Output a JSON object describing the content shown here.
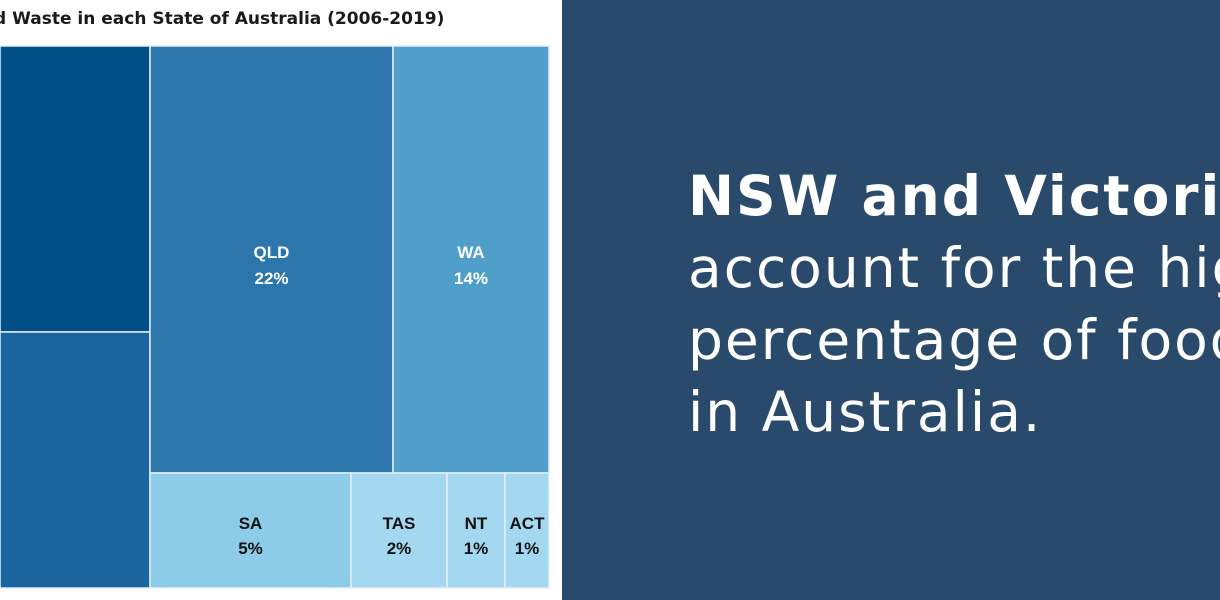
{
  "chart_data": {
    "type": "treemap",
    "title": "d Waste in each State of Australia (2006-2019)",
    "items": [
      {
        "label": "",
        "value": null,
        "display": "",
        "color": "#004f86"
      },
      {
        "label": "",
        "value": null,
        "display": "",
        "color": "#1a64a0"
      },
      {
        "label": "QLD",
        "value": 22,
        "display": "22%",
        "color": "#2c76ab"
      },
      {
        "label": "WA",
        "value": 14,
        "display": "14%",
        "color": "#4f9fca"
      },
      {
        "label": "SA",
        "value": 5,
        "display": "5%",
        "color": "#8ccce9"
      },
      {
        "label": "TAS",
        "value": 2,
        "display": "2%",
        "color": "#a3d8f0"
      },
      {
        "label": "NT",
        "value": 1,
        "display": "1%",
        "color": "#a3d8f0"
      },
      {
        "label": "ACT",
        "value": 1,
        "display": "1%",
        "color": "#a3d8f0"
      }
    ]
  },
  "headline": {
    "strong": "NSW and Victoria",
    "line2": "account for the hig",
    "line3": "percentage of food",
    "line4": "in Australia."
  }
}
